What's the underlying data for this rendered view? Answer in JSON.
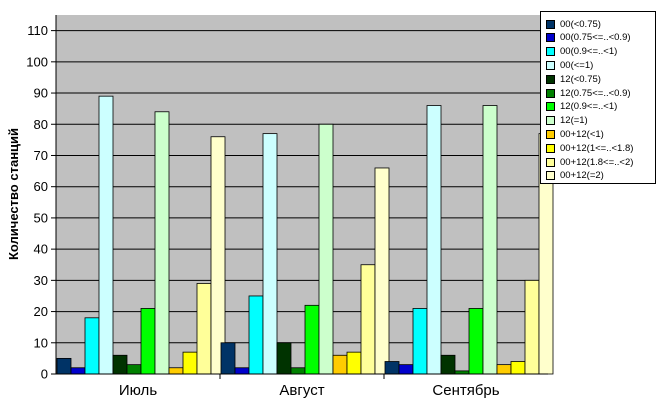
{
  "chart_data": {
    "type": "bar",
    "ylabel": "Количество станций",
    "ylim": [
      0,
      115
    ],
    "yticks": [
      0,
      10,
      20,
      30,
      40,
      50,
      60,
      70,
      80,
      90,
      100,
      110
    ],
    "grid": true,
    "legend_position": "right",
    "plot_background": "#c0c0c0",
    "categories": [
      "Июль",
      "Август",
      "Сентябрь"
    ],
    "series": [
      {
        "name": "00(<0.75)",
        "color": "#003366",
        "values": [
          5,
          10,
          4
        ]
      },
      {
        "name": "00(0.75<=..<0.9)",
        "color": "#0000cc",
        "values": [
          2,
          2,
          3
        ]
      },
      {
        "name": "00(0.9<=..<1)",
        "color": "#00ffff",
        "values": [
          18,
          25,
          21
        ]
      },
      {
        "name": "00(<=1)",
        "color": "#ccffff",
        "values": [
          89,
          77,
          86
        ]
      },
      {
        "name": "12(<0.75)",
        "color": "#003300",
        "values": [
          6,
          10,
          6
        ]
      },
      {
        "name": "12(0.75<=..<0.9)",
        "color": "#008000",
        "values": [
          3,
          2,
          1
        ]
      },
      {
        "name": "12(0.9<=..<1)",
        "color": "#00ff00",
        "values": [
          21,
          22,
          21
        ]
      },
      {
        "name": "12(=1)",
        "color": "#ccffcc",
        "values": [
          84,
          80,
          86
        ]
      },
      {
        "name": "00+12(<1)",
        "color": "#ffcc00",
        "values": [
          2,
          6,
          3
        ]
      },
      {
        "name": "00+12(1<=..<1.8)",
        "color": "#ffff00",
        "values": [
          7,
          7,
          4
        ]
      },
      {
        "name": "00+12(1.8<=..<2)",
        "color": "#ffff99",
        "values": [
          29,
          35,
          30
        ]
      },
      {
        "name": "00+12(=2)",
        "color": "#ffffcc",
        "values": [
          76,
          66,
          77
        ]
      }
    ]
  }
}
